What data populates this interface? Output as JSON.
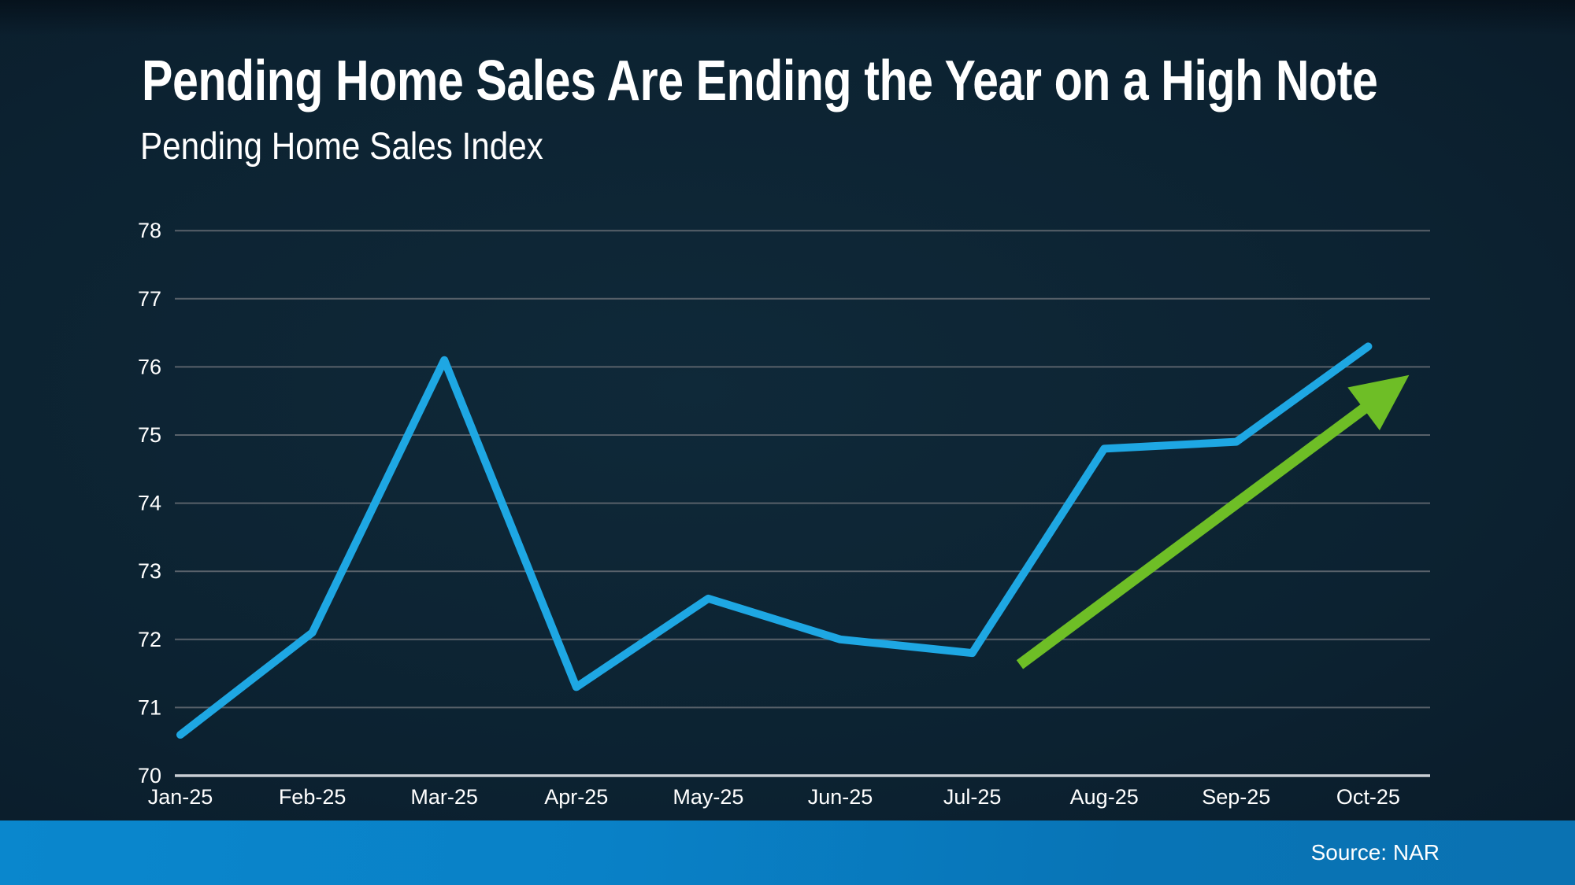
{
  "chart_data": {
    "type": "line",
    "title": "Pending Home Sales Are Ending the Year on a High Note",
    "subtitle": "Pending Home Sales Index",
    "categories": [
      "Jan-25",
      "Feb-25",
      "Mar-25",
      "Apr-25",
      "May-25",
      "Jun-25",
      "Jul-25",
      "Aug-25",
      "Sep-25",
      "Oct-25"
    ],
    "series": [
      {
        "name": "Pending Home Sales Index",
        "color": "#1EA7E3",
        "values": [
          70.6,
          72.1,
          76.1,
          71.3,
          72.6,
          72.0,
          71.8,
          74.8,
          74.9,
          76.3
        ]
      }
    ],
    "ylim": [
      70,
      78
    ],
    "yticks": [
      70,
      71,
      72,
      73,
      74,
      75,
      76,
      77,
      78
    ],
    "grid": true,
    "legend": "none",
    "annotation_arrow": {
      "description": "green upward trend arrow over Aug-Oct",
      "color": "#6EBE26",
      "from_month_index": 6.36,
      "from_value": 71.63,
      "to_month_index": 9.31,
      "to_value": 75.88
    }
  },
  "footer": {
    "source_label": "Source: NAR"
  },
  "colors": {
    "background_dark": "#0C2231",
    "line_blue": "#1EA7E3",
    "arrow_green": "#6EBE26",
    "gridline": "#58616A",
    "axis_line": "#C9CED4",
    "text": "#FFFFFF",
    "footer_blue": "#0981C7"
  }
}
